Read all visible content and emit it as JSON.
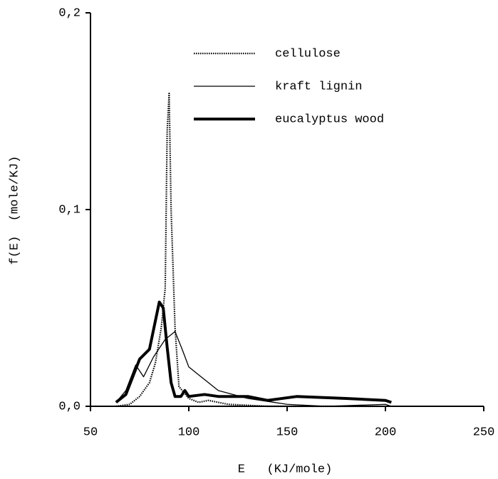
{
  "chart_data": {
    "type": "line",
    "x_label": "E   (KJ/mole)",
    "y_label": "f(E)  (mole/KJ)",
    "xlim": [
      50,
      250
    ],
    "xticks": [
      50,
      100,
      150,
      200,
      250
    ],
    "ylim": [
      0,
      0.2
    ],
    "yticks": [
      {
        "value": 0,
        "label": "0,0"
      },
      {
        "value": 0.1,
        "label": "0,1"
      },
      {
        "value": 0.2,
        "label": "0,2"
      }
    ],
    "legend": "top",
    "series": [
      {
        "name": "cellulose",
        "color": "#000000",
        "style": "dotted",
        "x": [
          63,
          70,
          75,
          80,
          83,
          86,
          88,
          89,
          90,
          91,
          93,
          95,
          100,
          105,
          110,
          120,
          140,
          200
        ],
        "values": [
          0.0,
          0.001,
          0.005,
          0.012,
          0.022,
          0.04,
          0.06,
          0.14,
          0.159,
          0.1,
          0.04,
          0.01,
          0.004,
          0.002,
          0.003,
          0.001,
          0.0,
          0.0
        ]
      },
      {
        "name": "kraft lignin",
        "color": "#000000",
        "style": "solid",
        "x": [
          63,
          68,
          73,
          77,
          82,
          88,
          93,
          97,
          100,
          105,
          115,
          130,
          150,
          170,
          200,
          203
        ],
        "values": [
          0.002,
          0.008,
          0.021,
          0.015,
          0.025,
          0.034,
          0.038,
          0.028,
          0.02,
          0.016,
          0.008,
          0.004,
          0.001,
          0.0,
          0.001,
          0.0
        ]
      },
      {
        "name": "eucalyptus wood",
        "color": "#000000",
        "style": "thick",
        "x": [
          63,
          68,
          75,
          80,
          85,
          87,
          89,
          91,
          93,
          96,
          98,
          100,
          108,
          115,
          130,
          140,
          155,
          180,
          200,
          203
        ],
        "values": [
          0.002,
          0.006,
          0.024,
          0.029,
          0.053,
          0.05,
          0.03,
          0.012,
          0.005,
          0.005,
          0.008,
          0.005,
          0.006,
          0.005,
          0.005,
          0.003,
          0.005,
          0.004,
          0.003,
          0.002
        ]
      }
    ]
  }
}
